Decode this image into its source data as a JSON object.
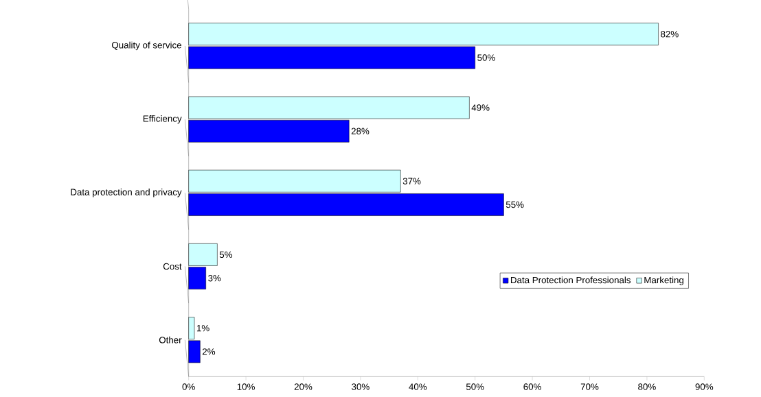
{
  "chart_data": {
    "type": "bar",
    "orientation": "horizontal",
    "categories": [
      "Quality of service",
      "Efficiency",
      "Data protection and privacy",
      "Cost",
      "Other"
    ],
    "series": [
      {
        "name": "Data Protection Professionals",
        "color": "#0000ff",
        "values": [
          50,
          28,
          55,
          3,
          2
        ],
        "value_labels": [
          "50%",
          "28%",
          "55%",
          "3%",
          "2%"
        ]
      },
      {
        "name": "Marketing",
        "color": "#ccffff",
        "values": [
          82,
          49,
          37,
          5,
          1
        ],
        "value_labels": [
          "82%",
          "49%",
          "37%",
          "5%",
          "1%"
        ]
      }
    ],
    "xlim": [
      0,
      90
    ],
    "xticks": [
      {
        "value": 0,
        "label": "0%"
      },
      {
        "value": 10,
        "label": "10%"
      },
      {
        "value": 20,
        "label": "20%"
      },
      {
        "value": 30,
        "label": "30%"
      },
      {
        "value": 40,
        "label": "40%"
      },
      {
        "value": 50,
        "label": "50%"
      },
      {
        "value": 60,
        "label": "60%"
      },
      {
        "value": 70,
        "label": "70%"
      },
      {
        "value": 80,
        "label": "80%"
      },
      {
        "value": 90,
        "label": "90%"
      }
    ],
    "legend": "bottom right",
    "grid": false
  }
}
